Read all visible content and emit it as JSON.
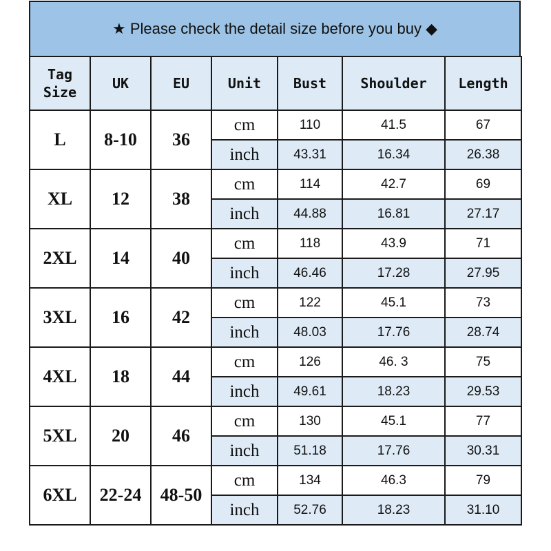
{
  "title": "★ Please check the detail size before you buy ◆",
  "colors": {
    "title_bg": "#9dc3e6",
    "header_bg": "#deebf7",
    "inch_row_bg": "#deebf7"
  },
  "headers": [
    "Tag Size",
    "UK",
    "EU",
    "Unit",
    "Bust",
    "Shoulder",
    "Length"
  ],
  "rows": [
    {
      "tag": "L",
      "uk": "8-10",
      "eu": "36",
      "cm": {
        "unit": "cm",
        "bust": "110",
        "shoulder": "41.5",
        "length": "67"
      },
      "inch": {
        "unit": "inch",
        "bust": "43.31",
        "shoulder": "16.34",
        "length": "26.38"
      }
    },
    {
      "tag": "XL",
      "uk": "12",
      "eu": "38",
      "cm": {
        "unit": "cm",
        "bust": "114",
        "shoulder": "42.7",
        "length": "69"
      },
      "inch": {
        "unit": "inch",
        "bust": "44.88",
        "shoulder": "16.81",
        "length": "27.17"
      }
    },
    {
      "tag": "2XL",
      "uk": "14",
      "eu": "40",
      "cm": {
        "unit": "cm",
        "bust": "118",
        "shoulder": "43.9",
        "length": "71"
      },
      "inch": {
        "unit": "inch",
        "bust": "46.46",
        "shoulder": "17.28",
        "length": "27.95"
      }
    },
    {
      "tag": "3XL",
      "uk": "16",
      "eu": "42",
      "cm": {
        "unit": "cm",
        "bust": "122",
        "shoulder": "45.1",
        "length": "73"
      },
      "inch": {
        "unit": "inch",
        "bust": "48.03",
        "shoulder": "17.76",
        "length": "28.74"
      }
    },
    {
      "tag": "4XL",
      "uk": "18",
      "eu": "44",
      "cm": {
        "unit": "cm",
        "bust": "126",
        "shoulder": "46. 3",
        "length": "75"
      },
      "inch": {
        "unit": "inch",
        "bust": "49.61",
        "shoulder": "18.23",
        "length": "29.53"
      }
    },
    {
      "tag": "5XL",
      "uk": "20",
      "eu": "46",
      "cm": {
        "unit": "cm",
        "bust": "130",
        "shoulder": "45.1",
        "length": "77"
      },
      "inch": {
        "unit": "inch",
        "bust": "51.18",
        "shoulder": "17.76",
        "length": "30.31"
      }
    },
    {
      "tag": "6XL",
      "uk": "22-24",
      "eu": "48-50",
      "cm": {
        "unit": "cm",
        "bust": "134",
        "shoulder": "46.3",
        "length": "79"
      },
      "inch": {
        "unit": "inch",
        "bust": "52.76",
        "shoulder": "18.23",
        "length": "31.10"
      }
    }
  ]
}
